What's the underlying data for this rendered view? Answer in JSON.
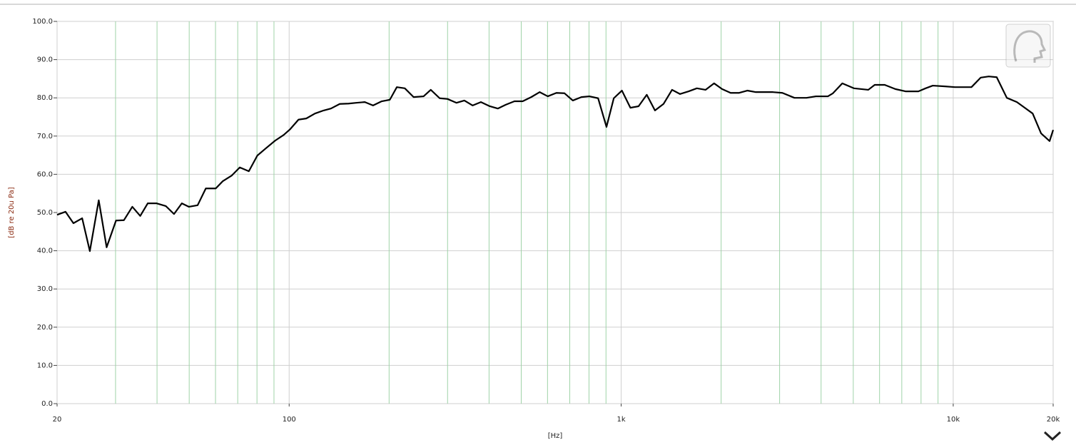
{
  "chart_data": {
    "type": "line",
    "x_label": "[Hz]",
    "y_label": "[dB re 20u Pa]",
    "log_x": true,
    "grid": true,
    "color": "#000000",
    "grid_color": "#cfcfcf",
    "minor_grid_color": "#9fd3a8",
    "xlim": [
      20,
      20000
    ],
    "ylim": [
      0,
      100
    ],
    "xticks": [
      20,
      100,
      {
        "value": 1000,
        "label": "1k"
      },
      {
        "value": 10000,
        "label": "10k"
      },
      {
        "value": 20000,
        "label": "20k"
      }
    ],
    "xminorticks": [
      30,
      40,
      50,
      60,
      70,
      80,
      90,
      200,
      300,
      400,
      500,
      600,
      700,
      800,
      900,
      2000,
      3000,
      4000,
      5000,
      6000,
      7000,
      8000,
      9000
    ],
    "yticks": [
      {
        "value": 0,
        "label": "0.0"
      },
      {
        "value": 10,
        "label": "10.0"
      },
      {
        "value": 20,
        "label": "20.0"
      },
      {
        "value": 30,
        "label": "30.0"
      },
      {
        "value": 40,
        "label": "40.0"
      },
      {
        "value": 50,
        "label": "50.0"
      },
      {
        "value": 60,
        "label": "60.0"
      },
      {
        "value": 70,
        "label": "70.0"
      },
      {
        "value": 80,
        "label": "80.0"
      },
      {
        "value": 90,
        "label": "90.0"
      },
      {
        "value": 100,
        "label": "100.0"
      }
    ],
    "x": [
      20,
      21.2,
      22.4,
      23.8,
      25.1,
      26.7,
      28.2,
      30.1,
      31.8,
      33.7,
      35.6,
      37.5,
      39.9,
      42.5,
      45,
      47.5,
      49.9,
      53,
      56.1,
      60.1,
      63.1,
      67.2,
      71,
      75.6,
      80.2,
      85.1,
      90.7,
      96.3,
      100.7,
      106.7,
      112.6,
      119.6,
      127,
      133.6,
      142,
      151,
      159,
      169,
      178.9,
      190,
      201,
      211,
      223,
      237,
      254,
      267,
      284,
      300,
      319,
      337,
      357,
      378,
      402,
      425,
      449,
      477,
      505,
      536,
      568,
      601,
      638,
      675,
      715,
      759,
      802,
      852,
      903,
      950,
      1005,
      1066,
      1128,
      1194,
      1264,
      1341,
      1423,
      1504,
      1597,
      1690,
      1795,
      1904,
      2013,
      2136,
      2266,
      2398,
      2544,
      2865,
      3058,
      3325,
      3615,
      3858,
      4194,
      4343,
      4634,
      5020,
      5549,
      5801,
      6218,
      6694,
      7180,
      7855,
      8258,
      8678,
      9441,
      10118,
      11348,
      12105,
      12796,
      13520,
      14502,
      15549,
      16425,
      17351,
      18394,
      19511,
      20000
    ],
    "values": [
      49.4,
      50.2,
      47.2,
      48.5,
      39.9,
      53.2,
      40.9,
      47.9,
      48,
      51.5,
      49.1,
      52.4,
      52.4,
      51.7,
      49.6,
      52.4,
      51.5,
      51.9,
      56.3,
      56.3,
      58.2,
      59.7,
      61.8,
      60.8,
      64.9,
      66.8,
      68.8,
      70.3,
      71.8,
      74.3,
      74.6,
      75.9,
      76.7,
      77.2,
      78.4,
      78.5,
      78.7,
      78.9,
      78,
      79.1,
      79.5,
      82.8,
      82.5,
      80.2,
      80.4,
      82.1,
      79.9,
      79.7,
      78.7,
      79.3,
      78,
      78.9,
      77.8,
      77.2,
      78.2,
      79.1,
      79.1,
      80.2,
      81.5,
      80.4,
      81.3,
      81.2,
      79.3,
      80.2,
      80.4,
      79.9,
      72.4,
      79.9,
      81.9,
      77.4,
      77.8,
      80.8,
      76.7,
      78.4,
      82.1,
      81,
      81.7,
      82.5,
      82.1,
      83.8,
      82.3,
      81.3,
      81.3,
      81.9,
      81.5,
      81.5,
      81.3,
      80,
      80,
      80.4,
      80.4,
      81.2,
      83.8,
      82.5,
      82.1,
      83.4,
      83.4,
      82.3,
      81.7,
      81.7,
      82.5,
      83.2,
      83,
      82.8,
      82.8,
      85.3,
      85.6,
      85.4,
      80,
      78.9,
      77.4,
      75.9,
      70.7,
      68.7,
      71.6
    ]
  }
}
